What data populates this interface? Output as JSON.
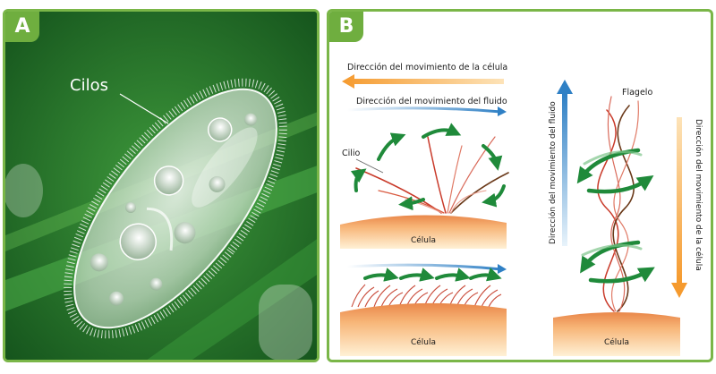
{
  "panel_a": {
    "badge": "A",
    "label_cilia": "Cilos"
  },
  "panel_b": {
    "badge": "B",
    "cilium": {
      "cell_direction": "Dirección del movimiento de la célula",
      "fluid_direction": "Dirección del movimiento del fluido",
      "cilium_label": "Cilio",
      "cell_label": "Célula",
      "cell_label_bottom": "Célula"
    },
    "flagellum": {
      "flagellum_label": "Flagelo",
      "fluid_direction": "Dirección del movimiento del fluido",
      "cell_direction": "Dirección del movimiento de la célula",
      "cell_label": "Célula"
    }
  },
  "colors": {
    "panel_border": "#7ab648",
    "badge": "#6fae3f",
    "cell_arrow": "#f7a23b",
    "fluid_arrow": "#3a86c8",
    "motion_arrow": "#1f8a3a",
    "cell_fill": "#f5b071"
  }
}
